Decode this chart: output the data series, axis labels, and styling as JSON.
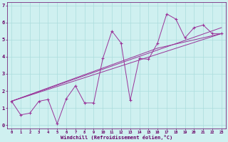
{
  "xlabel": "Windchill (Refroidissement éolien,°C)",
  "background_color": "#cff0f0",
  "grid_color": "#aadddd",
  "line_color": "#993399",
  "xlim": [
    -0.5,
    23.5
  ],
  "ylim": [
    -0.2,
    7.2
  ],
  "xticks": [
    0,
    1,
    2,
    3,
    4,
    5,
    6,
    7,
    8,
    9,
    10,
    11,
    12,
    13,
    14,
    15,
    16,
    17,
    18,
    19,
    20,
    21,
    22,
    23
  ],
  "yticks": [
    0,
    1,
    2,
    3,
    4,
    5,
    6,
    7
  ],
  "data_x": [
    0,
    1,
    2,
    3,
    4,
    5,
    6,
    7,
    8,
    9,
    10,
    11,
    12,
    13,
    14,
    15,
    16,
    17,
    18,
    19,
    20,
    21,
    22,
    23
  ],
  "data_y": [
    1.4,
    0.6,
    0.7,
    1.4,
    1.5,
    0.08,
    1.55,
    2.3,
    1.3,
    1.3,
    3.9,
    5.5,
    4.8,
    1.45,
    3.9,
    3.85,
    4.8,
    6.5,
    6.2,
    5.1,
    5.7,
    5.85,
    5.35,
    5.35
  ],
  "trend1_x": [
    0,
    23
  ],
  "trend1_y": [
    1.4,
    5.35
  ],
  "trend2_x": [
    0,
    23
  ],
  "trend2_y": [
    1.4,
    5.7
  ],
  "trend3_x": [
    0,
    16,
    23
  ],
  "trend3_y": [
    1.4,
    4.5,
    5.35
  ]
}
